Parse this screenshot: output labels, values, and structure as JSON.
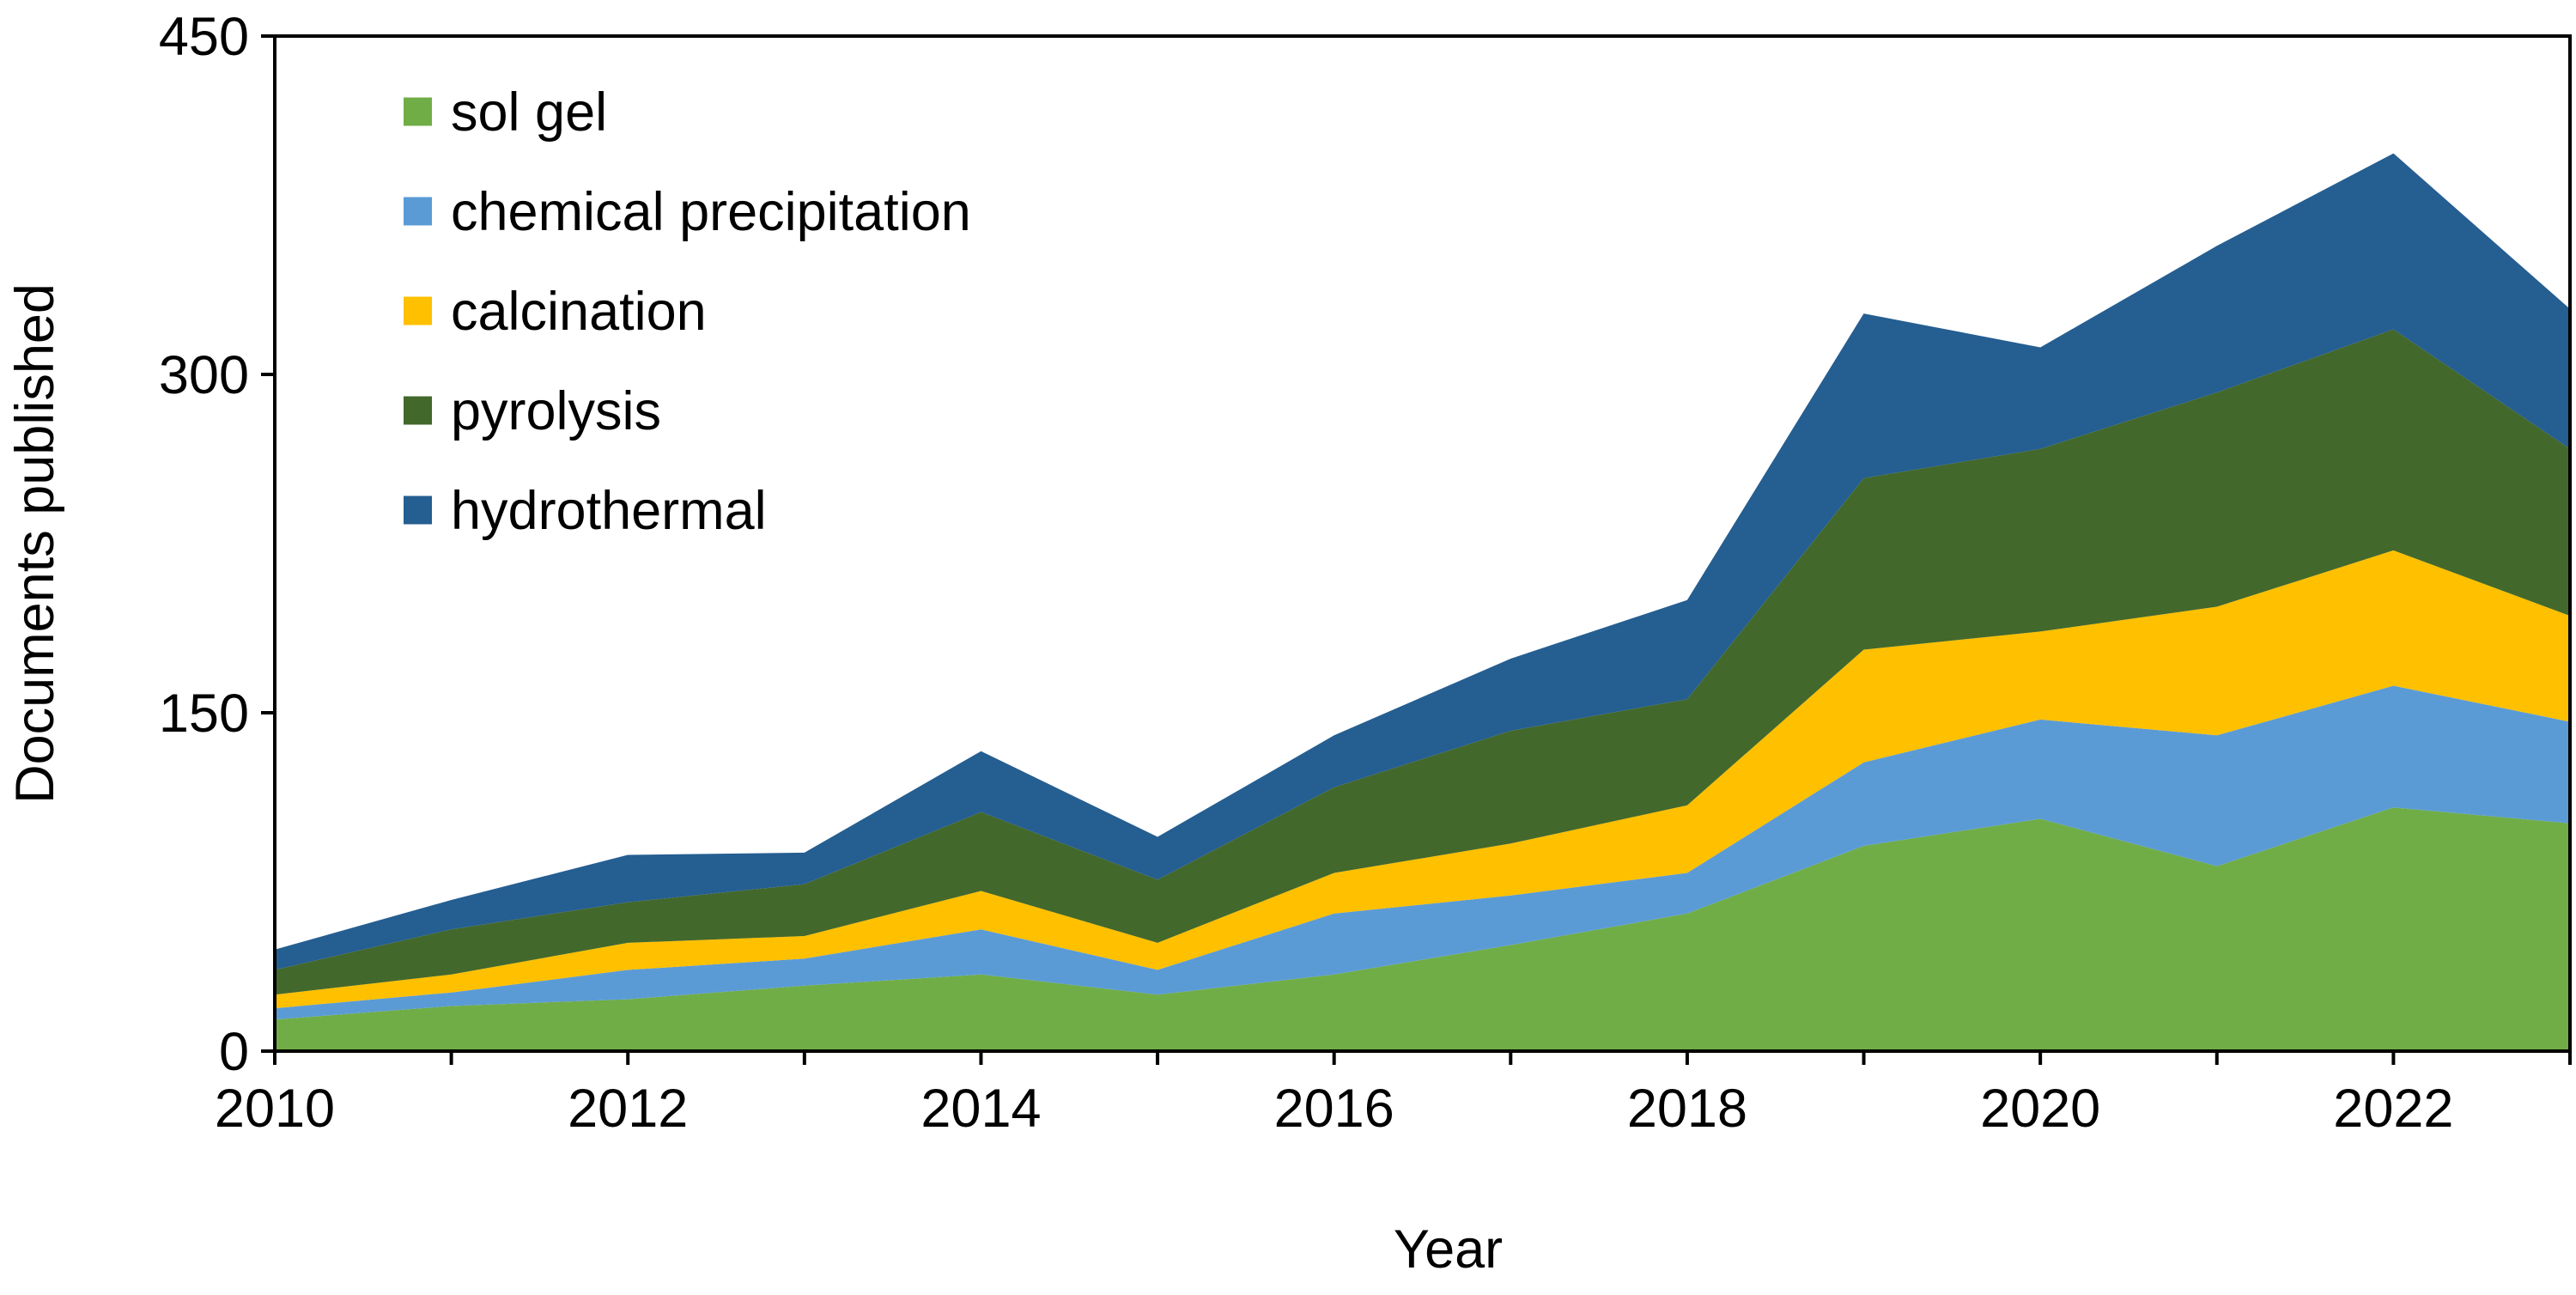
{
  "chart_data": {
    "type": "area",
    "stacked": true,
    "title": "",
    "xlabel": "Year",
    "ylabel": "Documents published",
    "x": [
      2010,
      2011,
      2012,
      2013,
      2014,
      2015,
      2016,
      2017,
      2018,
      2019,
      2020,
      2021,
      2022,
      2023
    ],
    "xlim": [
      2010,
      2023
    ],
    "ylim": [
      0,
      450
    ],
    "x_ticks": [
      "2010",
      "2012",
      "2014",
      "2016",
      "2018",
      "2020",
      "2022"
    ],
    "y_ticks": [
      "0",
      "150",
      "300",
      "450"
    ],
    "legend_position": "top-left",
    "series": [
      {
        "name": "sol gel",
        "color": "#70AD47",
        "values": [
          14,
          20,
          23,
          29,
          34,
          25,
          34,
          47,
          61,
          91,
          103,
          82,
          108,
          101
        ]
      },
      {
        "name": "chemical precipitation",
        "color": "#5B9BD5",
        "values": [
          5,
          6,
          13,
          12,
          20,
          11,
          27,
          22,
          18,
          37,
          44,
          58,
          54,
          45
        ]
      },
      {
        "name": "calcination",
        "color": "#FFC000",
        "values": [
          6,
          8,
          12,
          10,
          17,
          12,
          18,
          23,
          30,
          50,
          39,
          57,
          60,
          47
        ]
      },
      {
        "name": "pyrolysis",
        "color": "#43682B",
        "values": [
          11,
          20,
          18,
          23,
          35,
          28,
          38,
          50,
          47,
          76,
          81,
          95,
          98,
          74
        ]
      },
      {
        "name": "hydrothermal",
        "color": "#255E91",
        "values": [
          9,
          13,
          21,
          14,
          27,
          19,
          23,
          32,
          44,
          73,
          45,
          65,
          78,
          62
        ]
      }
    ]
  }
}
